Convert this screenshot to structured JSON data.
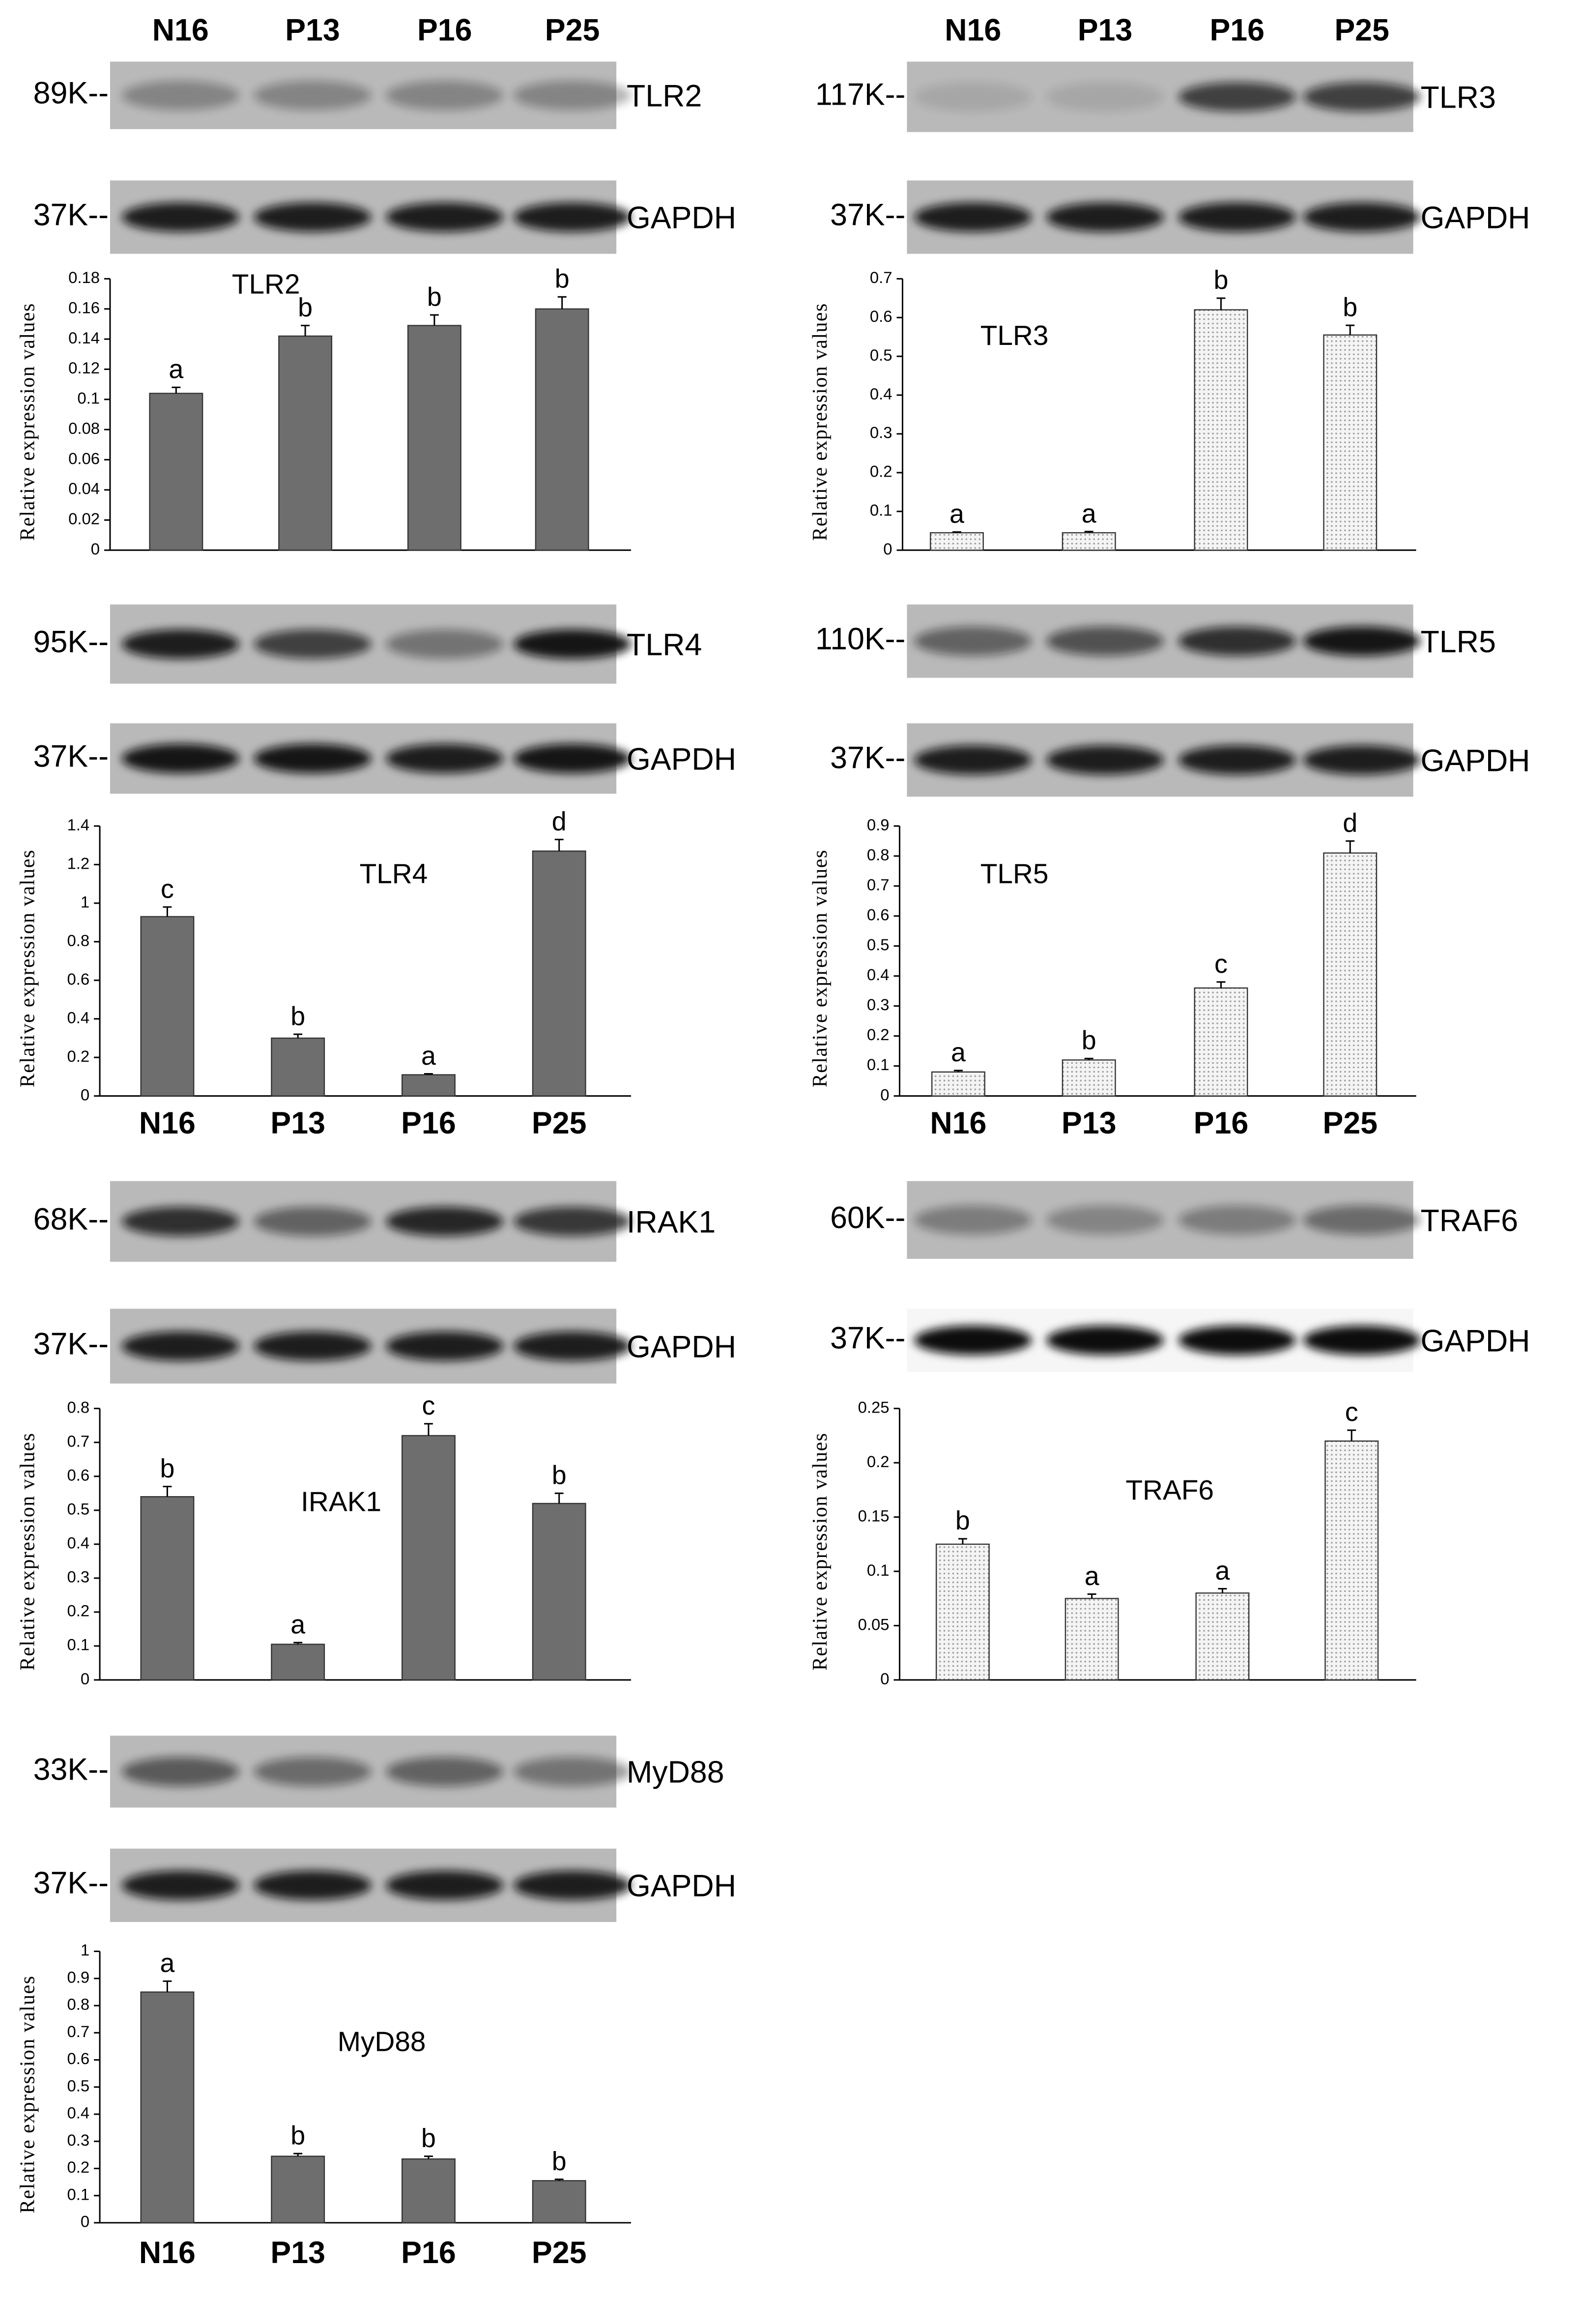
{
  "lane_headers": [
    [
      "N16",
      "P13",
      "P16",
      "P25"
    ],
    [
      "N16",
      "P13",
      "P16",
      "P25"
    ]
  ],
  "blots": [
    {
      "marker": "89K--",
      "label": "TLR2"
    },
    {
      "marker": "37K--",
      "label": "GAPDH"
    },
    {
      "marker": "117K--",
      "label": "TLR3"
    },
    {
      "marker": "37K--",
      "label": "GAPDH"
    },
    {
      "marker": "95K--",
      "label": "TLR4"
    },
    {
      "marker": "37K--",
      "label": "GAPDH"
    },
    {
      "marker": "110K--",
      "label": "TLR5"
    },
    {
      "marker": "37K--",
      "label": "GAPDH"
    },
    {
      "marker": "68K--",
      "label": "IRAK1"
    },
    {
      "marker": "37K--",
      "label": "GAPDH"
    },
    {
      "marker": "60K--",
      "label": "TRAF6"
    },
    {
      "marker": "37K--",
      "label": "GAPDH"
    },
    {
      "marker": "33K--",
      "label": "MyD88"
    },
    {
      "marker": "37K--",
      "label": "GAPDH"
    }
  ],
  "chart_data": [
    {
      "type": "bar",
      "title": "TLR2",
      "ylabel": "Relative expression values",
      "categories": [
        null,
        null,
        null,
        null
      ],
      "values": [
        0.104,
        0.142,
        0.149,
        0.16
      ],
      "errors": [
        0.004,
        0.007,
        0.007,
        0.008
      ],
      "annotations": [
        "a",
        "b",
        "b",
        "b"
      ],
      "color": "#6e6e6e",
      "fill_pattern": "solid",
      "ylim": [
        0,
        0.18
      ],
      "yticks": [
        0,
        0.02,
        0.04,
        0.06,
        0.08,
        0.1,
        0.12,
        0.14,
        0.16,
        0.18
      ]
    },
    {
      "type": "bar",
      "title": "TLR3",
      "ylabel": "Relative expression values",
      "categories": [
        null,
        null,
        null,
        null
      ],
      "values": [
        0.045,
        0.045,
        0.62,
        0.555
      ],
      "errors": [
        0.002,
        0.003,
        0.03,
        0.025
      ],
      "annotations": [
        "a",
        "a",
        "b",
        "b"
      ],
      "color": "#f0f0f0",
      "fill_pattern": "dotted",
      "ylim": [
        0,
        0.7
      ],
      "yticks": [
        0,
        0.1,
        0.2,
        0.3,
        0.4,
        0.5,
        0.6,
        0.7
      ]
    },
    {
      "type": "bar",
      "title": "TLR4",
      "ylabel": "Relative expression values",
      "categories": [
        "N16",
        "P13",
        "P16",
        "P25"
      ],
      "values": [
        0.93,
        0.3,
        0.11,
        1.27
      ],
      "errors": [
        0.05,
        0.02,
        0.005,
        0.06
      ],
      "annotations": [
        "c",
        "b",
        "a",
        "d"
      ],
      "color": "#6e6e6e",
      "fill_pattern": "solid",
      "ylim": [
        0,
        1.4
      ],
      "yticks": [
        0,
        0.2,
        0.4,
        0.6,
        0.8,
        1,
        1.2,
        1.4
      ]
    },
    {
      "type": "bar",
      "title": "TLR5",
      "ylabel": "Relative expression values",
      "categories": [
        "N16",
        "P13",
        "P16",
        "P25"
      ],
      "values": [
        0.08,
        0.12,
        0.36,
        0.81
      ],
      "errors": [
        0.005,
        0.005,
        0.02,
        0.04
      ],
      "annotations": [
        "a",
        "b",
        "c",
        "d"
      ],
      "color": "#f0f0f0",
      "fill_pattern": "dotted",
      "ylim": [
        0,
        0.9
      ],
      "yticks": [
        0,
        0.1,
        0.2,
        0.3,
        0.4,
        0.5,
        0.6,
        0.7,
        0.8,
        0.9
      ]
    },
    {
      "type": "bar",
      "title": "IRAK1",
      "ylabel": "Relative expression values",
      "categories": [
        null,
        null,
        null,
        null
      ],
      "values": [
        0.54,
        0.105,
        0.72,
        0.52
      ],
      "errors": [
        0.03,
        0.005,
        0.035,
        0.03
      ],
      "annotations": [
        "b",
        "a",
        "c",
        "b"
      ],
      "color": "#6e6e6e",
      "fill_pattern": "solid",
      "ylim": [
        0,
        0.8
      ],
      "yticks": [
        0,
        0.1,
        0.2,
        0.3,
        0.4,
        0.5,
        0.6,
        0.7,
        0.8
      ]
    },
    {
      "type": "bar",
      "title": "TRAF6",
      "ylabel": "Relative expression values",
      "categories": [
        null,
        null,
        null,
        null
      ],
      "values": [
        0.125,
        0.075,
        0.08,
        0.22
      ],
      "errors": [
        0.005,
        0.004,
        0.004,
        0.01
      ],
      "annotations": [
        "b",
        "a",
        "a",
        "c"
      ],
      "color": "#f0f0f0",
      "fill_pattern": "dotted",
      "ylim": [
        0,
        0.25
      ],
      "yticks": [
        0,
        0.05,
        0.1,
        0.15,
        0.2,
        0.25
      ]
    },
    {
      "type": "bar",
      "title": "MyD88",
      "ylabel": "Relative expression values",
      "categories": [
        "N16",
        "P13",
        "P16",
        "P25"
      ],
      "values": [
        0.85,
        0.245,
        0.235,
        0.155
      ],
      "errors": [
        0.04,
        0.01,
        0.01,
        0.005
      ],
      "annotations": [
        "a",
        "b",
        "b",
        "b"
      ],
      "color": "#6e6e6e",
      "fill_pattern": "solid",
      "ylim": [
        0,
        1
      ],
      "yticks": [
        0,
        0.1,
        0.2,
        0.3,
        0.4,
        0.5,
        0.6,
        0.7,
        0.8,
        0.9,
        1
      ]
    }
  ]
}
